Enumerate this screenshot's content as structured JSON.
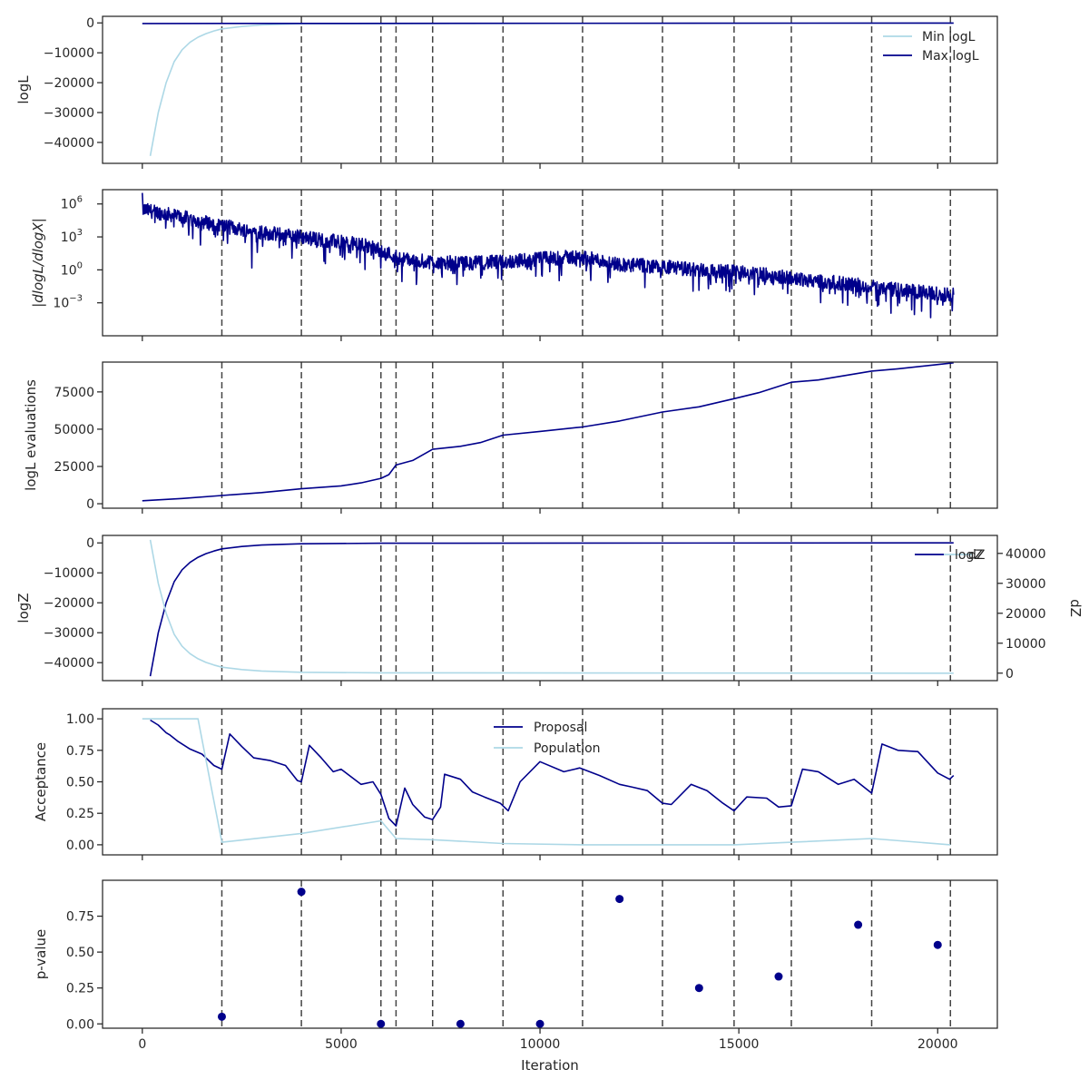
{
  "colors": {
    "light": "#add8e6",
    "dark": "#00008b",
    "vline": "#444444"
  },
  "x_axis": {
    "label": "Iteration",
    "ticks": [
      0,
      5000,
      10000,
      15000,
      20000
    ],
    "tick_labels": [
      "0",
      "5000",
      "10000",
      "15000",
      "20000"
    ],
    "xlim": [
      -1000,
      21500
    ]
  },
  "vlines": [
    2000,
    4000,
    6000,
    6380,
    7300,
    9070,
    11070,
    13080,
    14880,
    16320,
    18340,
    20320
  ],
  "chart_data": [
    {
      "type": "line",
      "ylabel": "logL",
      "ylim": [
        -47000,
        2200
      ],
      "yticks": [
        0,
        -10000,
        -20000,
        -30000,
        -40000
      ],
      "ytick_labels": [
        "0",
        "−10000",
        "−20000",
        "−30000",
        "−40000"
      ],
      "legend": "top-right",
      "series": [
        {
          "name": "Min logL",
          "color": "light",
          "x": [
            200,
            400,
            600,
            800,
            1000,
            1200,
            1400,
            1600,
            1800,
            2000,
            2500,
            3000,
            4000,
            20400
          ],
          "y": [
            -44500,
            -30000,
            -20000,
            -13000,
            -9000,
            -6500,
            -4800,
            -3600,
            -2700,
            -2000,
            -1200,
            -700,
            -300,
            -50
          ]
        },
        {
          "name": "Max logL",
          "color": "dark",
          "x": [
            0,
            20400
          ],
          "y": [
            -200,
            -50
          ]
        }
      ]
    },
    {
      "type": "line",
      "ylabel": "|dlogL/dlogX|",
      "ylog": true,
      "ylim_exp": [
        -6,
        7.3
      ],
      "yticks_exp": [
        6,
        3,
        0,
        -3
      ],
      "ytick_labels": [
        "10",
        "10",
        "10",
        "10"
      ],
      "ytick_sups": [
        "6",
        "3",
        "0",
        "−3"
      ],
      "series": [
        {
          "name": "",
          "color": "dark",
          "x": [
            0,
            1000,
            2000,
            3000,
            4000,
            5000,
            5500,
            6000,
            6500,
            7000,
            8000,
            9000,
            10000,
            11000,
            12000,
            13000,
            14000,
            15000,
            16000,
            17000,
            18000,
            19000,
            20000,
            20400
          ],
          "y_exp": [
            5.5,
            4.8,
            4.0,
            3.4,
            3.0,
            2.5,
            2.3,
            1.8,
            1.0,
            0.8,
            0.6,
            0.7,
            1.0,
            1.2,
            0.5,
            0.3,
            0.0,
            -0.2,
            -0.6,
            -1.0,
            -1.4,
            -1.8,
            -2.2,
            -2.3
          ]
        }
      ]
    },
    {
      "type": "line",
      "ylabel": "logL evaluations",
      "ylim": [
        -3000,
        95000
      ],
      "yticks": [
        0,
        25000,
        50000,
        75000
      ],
      "ytick_labels": [
        "0",
        "25000",
        "50000",
        "75000"
      ],
      "series": [
        {
          "name": "",
          "color": "dark",
          "x": [
            0,
            1000,
            2000,
            3000,
            4000,
            5000,
            5500,
            6000,
            6200,
            6380,
            6800,
            7300,
            8000,
            8500,
            9070,
            10000,
            11070,
            12000,
            13080,
            14000,
            14880,
            15500,
            16320,
            17000,
            18340,
            19000,
            20400
          ],
          "y": [
            2000,
            3500,
            5500,
            7500,
            10000,
            12000,
            14000,
            17000,
            19500,
            26000,
            29000,
            36500,
            38500,
            41000,
            46000,
            48500,
            51500,
            55500,
            61500,
            65000,
            70500,
            74500,
            81500,
            83000,
            89000,
            90500,
            94500
          ]
        }
      ]
    },
    {
      "type": "line",
      "ylabel": "logZ",
      "y2label": "dZ",
      "ylim": [
        -46000,
        2500
      ],
      "yticks": [
        0,
        -10000,
        -20000,
        -30000,
        -40000
      ],
      "ytick_labels": [
        "0",
        "−10000",
        "−20000",
        "−30000",
        "−40000"
      ],
      "y2lim": [
        -2500,
        46000
      ],
      "y2ticks": [
        0,
        10000,
        20000,
        30000,
        40000
      ],
      "y2tick_labels": [
        "0",
        "10000",
        "20000",
        "30000",
        "40000"
      ],
      "legend_labels": [
        "logZ",
        "dZ"
      ],
      "series": [
        {
          "name": "logZ",
          "color": "dark",
          "axis": "left",
          "x": [
            200,
            400,
            600,
            800,
            1000,
            1200,
            1400,
            1600,
            1800,
            2000,
            2500,
            3000,
            4000,
            6000,
            20400
          ],
          "y": [
            -44500,
            -30000,
            -20000,
            -13000,
            -9000,
            -6500,
            -4800,
            -3600,
            -2700,
            -2000,
            -1200,
            -700,
            -300,
            -100,
            0
          ]
        },
        {
          "name": "dZ",
          "color": "light",
          "axis": "right",
          "x": [
            200,
            400,
            600,
            800,
            1000,
            1200,
            1400,
            1600,
            1800,
            2000,
            2500,
            3000,
            4000,
            6000,
            20400
          ],
          "y": [
            44500,
            30000,
            20000,
            13000,
            9000,
            6500,
            4800,
            3600,
            2700,
            2000,
            1200,
            700,
            300,
            100,
            0
          ]
        }
      ]
    },
    {
      "type": "line",
      "ylabel": "Acceptance",
      "ylim": [
        -0.08,
        1.08
      ],
      "yticks": [
        0.0,
        0.25,
        0.5,
        0.75,
        1.0
      ],
      "ytick_labels": [
        "0.00",
        "0.25",
        "0.50",
        "0.75",
        "1.00"
      ],
      "legend": "top-center",
      "series": [
        {
          "name": "Proposal",
          "color": "dark",
          "x": [
            200,
            400,
            600,
            700,
            900,
            1200,
            1500,
            1800,
            2000,
            2200,
            2500,
            2800,
            3200,
            3600,
            3900,
            4000,
            4200,
            4500,
            4800,
            5000,
            5500,
            5800,
            6000,
            6200,
            6380,
            6600,
            6800,
            7100,
            7300,
            7500,
            7600,
            8000,
            8300,
            8600,
            9000,
            9200,
            9500,
            10000,
            10600,
            11000,
            11500,
            12000,
            12300,
            12700,
            13080,
            13300,
            13800,
            14200,
            14600,
            14880,
            15200,
            15700,
            16000,
            16320,
            16600,
            17000,
            17500,
            17900,
            18340,
            18600,
            19000,
            19500,
            20000,
            20300,
            20400
          ],
          "y": [
            0.99,
            0.95,
            0.89,
            0.87,
            0.82,
            0.76,
            0.72,
            0.63,
            0.6,
            0.88,
            0.78,
            0.69,
            0.67,
            0.63,
            0.51,
            0.5,
            0.79,
            0.69,
            0.58,
            0.6,
            0.48,
            0.5,
            0.4,
            0.21,
            0.15,
            0.45,
            0.32,
            0.22,
            0.2,
            0.3,
            0.56,
            0.52,
            0.42,
            0.38,
            0.33,
            0.27,
            0.5,
            0.66,
            0.58,
            0.61,
            0.55,
            0.48,
            0.46,
            0.43,
            0.33,
            0.32,
            0.48,
            0.43,
            0.33,
            0.27,
            0.38,
            0.37,
            0.3,
            0.31,
            0.6,
            0.58,
            0.48,
            0.52,
            0.41,
            0.8,
            0.75,
            0.74,
            0.57,
            0.52,
            0.55
          ]
        },
        {
          "name": "Population",
          "color": "light",
          "x": [
            0,
            1400,
            2000,
            4000,
            6000,
            6380,
            7300,
            9070,
            11070,
            13080,
            14880,
            16320,
            18340,
            20320
          ],
          "y": [
            1.0,
            1.0,
            0.02,
            0.09,
            0.19,
            0.05,
            0.04,
            0.01,
            0.0,
            0.0,
            0.0,
            0.02,
            0.05,
            0.0
          ]
        }
      ]
    },
    {
      "type": "scatter",
      "ylabel": "p-value",
      "xlabel": "Iteration",
      "ylim": [
        -0.03,
        1.0
      ],
      "yticks": [
        0.0,
        0.25,
        0.5,
        0.75
      ],
      "ytick_labels": [
        "0.00",
        "0.25",
        "0.50",
        "0.75"
      ],
      "series": [
        {
          "name": "",
          "color": "dark",
          "x": [
            2000,
            4000,
            6000,
            8000,
            10000,
            12000,
            14000,
            16000,
            18000,
            20000
          ],
          "y": [
            0.05,
            0.92,
            0.0,
            0.0,
            0.0,
            0.87,
            0.25,
            0.33,
            0.69,
            0.55
          ]
        }
      ]
    }
  ]
}
